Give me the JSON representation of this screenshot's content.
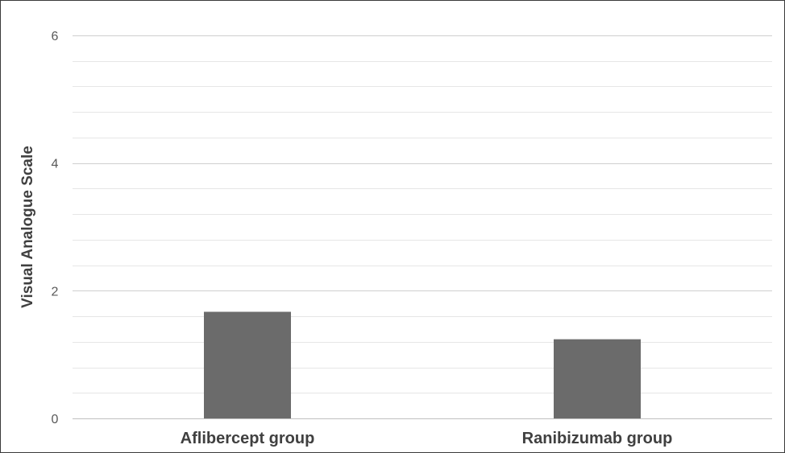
{
  "chart_data": {
    "type": "bar",
    "title": "",
    "xlabel": "",
    "ylabel": "Visual Analogue Scale",
    "categories": [
      "Aflibercept group",
      "Ranibizumab group"
    ],
    "values": [
      1.67,
      1.24
    ],
    "ylim": [
      0,
      6
    ],
    "yticks": [
      0,
      2,
      4,
      6
    ],
    "minor_grid_step": 0.4,
    "grid": true,
    "legend": "none",
    "bar_color": "#6b6b6b",
    "grid_color": "#d9d9d9"
  }
}
